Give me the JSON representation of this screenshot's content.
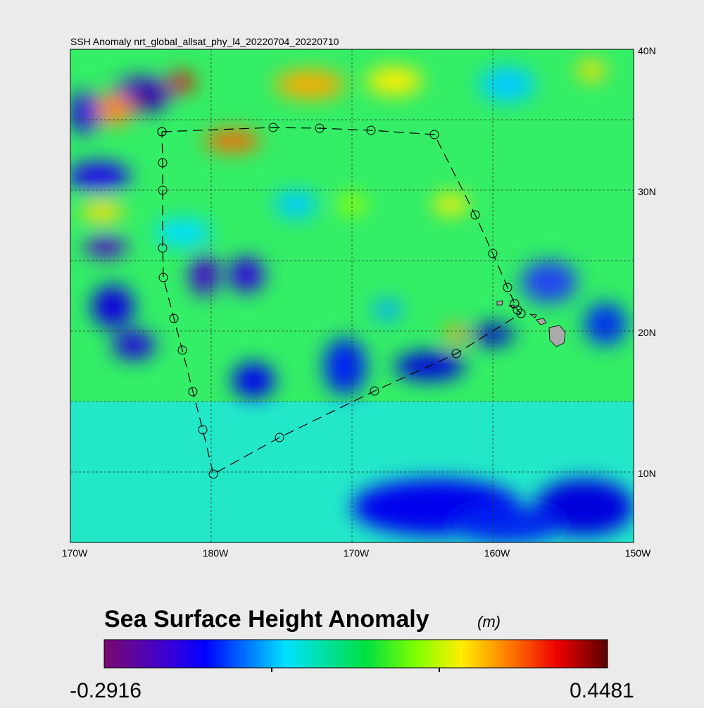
{
  "title": "SSH Anomaly nrt_global_allsat_phy_l4_20220704_20220710",
  "axes": {
    "x_labels": [
      "170W",
      "180W",
      "170W",
      "160W",
      "150W"
    ],
    "y_labels": [
      "40N",
      "30N",
      "20N",
      "10N"
    ]
  },
  "colorbar": {
    "title": "Sea Surface Height Anomaly",
    "unit": "(m)",
    "min": -0.2916,
    "max": 0.4481
  }
}
